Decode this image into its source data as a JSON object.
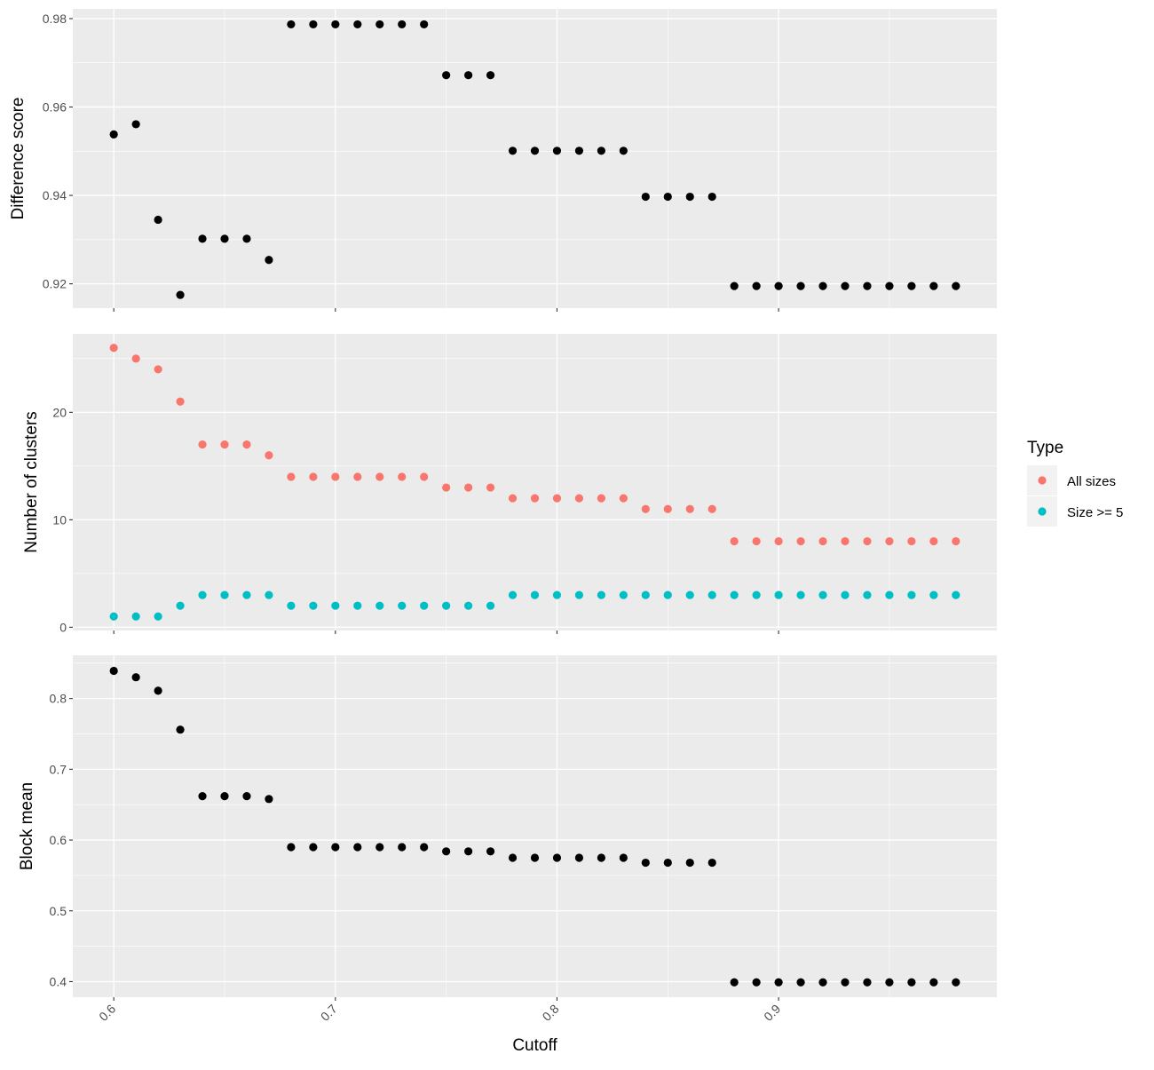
{
  "chart_data": {
    "type": "scatter",
    "x_label": "Cutoff",
    "x_ticks": [
      "0.6",
      "0.7",
      "0.8",
      "0.9"
    ],
    "xlim": [
      0.5815,
      0.9985
    ],
    "panels": [
      {
        "ylabel": "Difference score",
        "ylim": [
          0.9145,
          0.9822
        ],
        "y_ticks": [
          "0.92",
          "0.94",
          "0.96",
          "0.98"
        ],
        "series": [
          {
            "color": "#000000",
            "x": [
              0.6,
              0.61,
              0.62,
              0.63,
              0.64,
              0.65,
              0.66,
              0.67,
              0.68,
              0.69,
              0.7,
              0.71,
              0.72,
              0.73,
              0.74,
              0.75,
              0.76,
              0.77,
              0.78,
              0.79,
              0.8,
              0.81,
              0.82,
              0.83,
              0.84,
              0.85,
              0.86,
              0.87,
              0.88,
              0.89,
              0.9,
              0.91,
              0.92,
              0.93,
              0.94,
              0.95,
              0.96,
              0.97,
              0.98
            ],
            "y": [
              0.9538,
              0.9561,
              0.9345,
              0.9175,
              0.9302,
              0.9302,
              0.9302,
              0.9254,
              0.9787,
              0.9787,
              0.9787,
              0.9787,
              0.9787,
              0.9787,
              0.9787,
              0.9672,
              0.9672,
              0.9672,
              0.9501,
              0.9501,
              0.9501,
              0.9501,
              0.9501,
              0.9501,
              0.9397,
              0.9397,
              0.9397,
              0.9397,
              0.9195,
              0.9195,
              0.9195,
              0.9195,
              0.9195,
              0.9195,
              0.9195,
              0.9195,
              0.9195,
              0.9195,
              0.9195
            ]
          }
        ]
      },
      {
        "ylabel": "Number of clusters",
        "ylim": [
          -0.3,
          27.3
        ],
        "y_ticks": [
          "0",
          "10",
          "20"
        ],
        "series": [
          {
            "name": "All sizes",
            "color": "#F8766D",
            "x": [
              0.6,
              0.61,
              0.62,
              0.63,
              0.64,
              0.65,
              0.66,
              0.67,
              0.68,
              0.69,
              0.7,
              0.71,
              0.72,
              0.73,
              0.74,
              0.75,
              0.76,
              0.77,
              0.78,
              0.79,
              0.8,
              0.81,
              0.82,
              0.83,
              0.84,
              0.85,
              0.86,
              0.87,
              0.88,
              0.89,
              0.9,
              0.91,
              0.92,
              0.93,
              0.94,
              0.95,
              0.96,
              0.97,
              0.98
            ],
            "y": [
              26,
              25,
              24,
              21,
              17,
              17,
              17,
              16,
              14,
              14,
              14,
              14,
              14,
              14,
              14,
              13,
              13,
              13,
              12,
              12,
              12,
              12,
              12,
              12,
              11,
              11,
              11,
              11,
              8,
              8,
              8,
              8,
              8,
              8,
              8,
              8,
              8,
              8,
              8
            ]
          },
          {
            "name": "Size >= 5",
            "color": "#00BFC4",
            "x": [
              0.6,
              0.61,
              0.62,
              0.63,
              0.64,
              0.65,
              0.66,
              0.67,
              0.68,
              0.69,
              0.7,
              0.71,
              0.72,
              0.73,
              0.74,
              0.75,
              0.76,
              0.77,
              0.78,
              0.79,
              0.8,
              0.81,
              0.82,
              0.83,
              0.84,
              0.85,
              0.86,
              0.87,
              0.88,
              0.89,
              0.9,
              0.91,
              0.92,
              0.93,
              0.94,
              0.95,
              0.96,
              0.97,
              0.98
            ],
            "y": [
              1,
              1,
              1,
              2,
              3,
              3,
              3,
              3,
              2,
              2,
              2,
              2,
              2,
              2,
              2,
              2,
              2,
              2,
              3,
              3,
              3,
              3,
              3,
              3,
              3,
              3,
              3,
              3,
              3,
              3,
              3,
              3,
              3,
              3,
              3,
              3,
              3,
              3,
              3
            ]
          }
        ]
      },
      {
        "ylabel": "Block mean",
        "ylim": [
          0.378,
          0.861
        ],
        "y_ticks": [
          "0.4",
          "0.5",
          "0.6",
          "0.7",
          "0.8"
        ],
        "series": [
          {
            "color": "#000000",
            "x": [
              0.6,
              0.61,
              0.62,
              0.63,
              0.64,
              0.65,
              0.66,
              0.67,
              0.68,
              0.69,
              0.7,
              0.71,
              0.72,
              0.73,
              0.74,
              0.75,
              0.76,
              0.77,
              0.78,
              0.79,
              0.8,
              0.81,
              0.82,
              0.83,
              0.84,
              0.85,
              0.86,
              0.87,
              0.88,
              0.89,
              0.9,
              0.91,
              0.92,
              0.93,
              0.94,
              0.95,
              0.96,
              0.97,
              0.98
            ],
            "y": [
              0.839,
              0.83,
              0.811,
              0.756,
              0.662,
              0.662,
              0.662,
              0.658,
              0.59,
              0.59,
              0.59,
              0.59,
              0.59,
              0.59,
              0.59,
              0.584,
              0.584,
              0.584,
              0.575,
              0.575,
              0.575,
              0.575,
              0.575,
              0.575,
              0.568,
              0.568,
              0.568,
              0.568,
              0.399,
              0.399,
              0.399,
              0.399,
              0.399,
              0.399,
              0.399,
              0.399,
              0.399,
              0.399,
              0.399
            ]
          }
        ]
      }
    ],
    "legend": {
      "title": "Type",
      "position": "right",
      "items": [
        {
          "label": "All sizes",
          "color": "#F8766D"
        },
        {
          "label": "Size >= 5",
          "color": "#00BFC4"
        }
      ]
    },
    "grid": true,
    "panel_background": "#EBEBEB"
  }
}
